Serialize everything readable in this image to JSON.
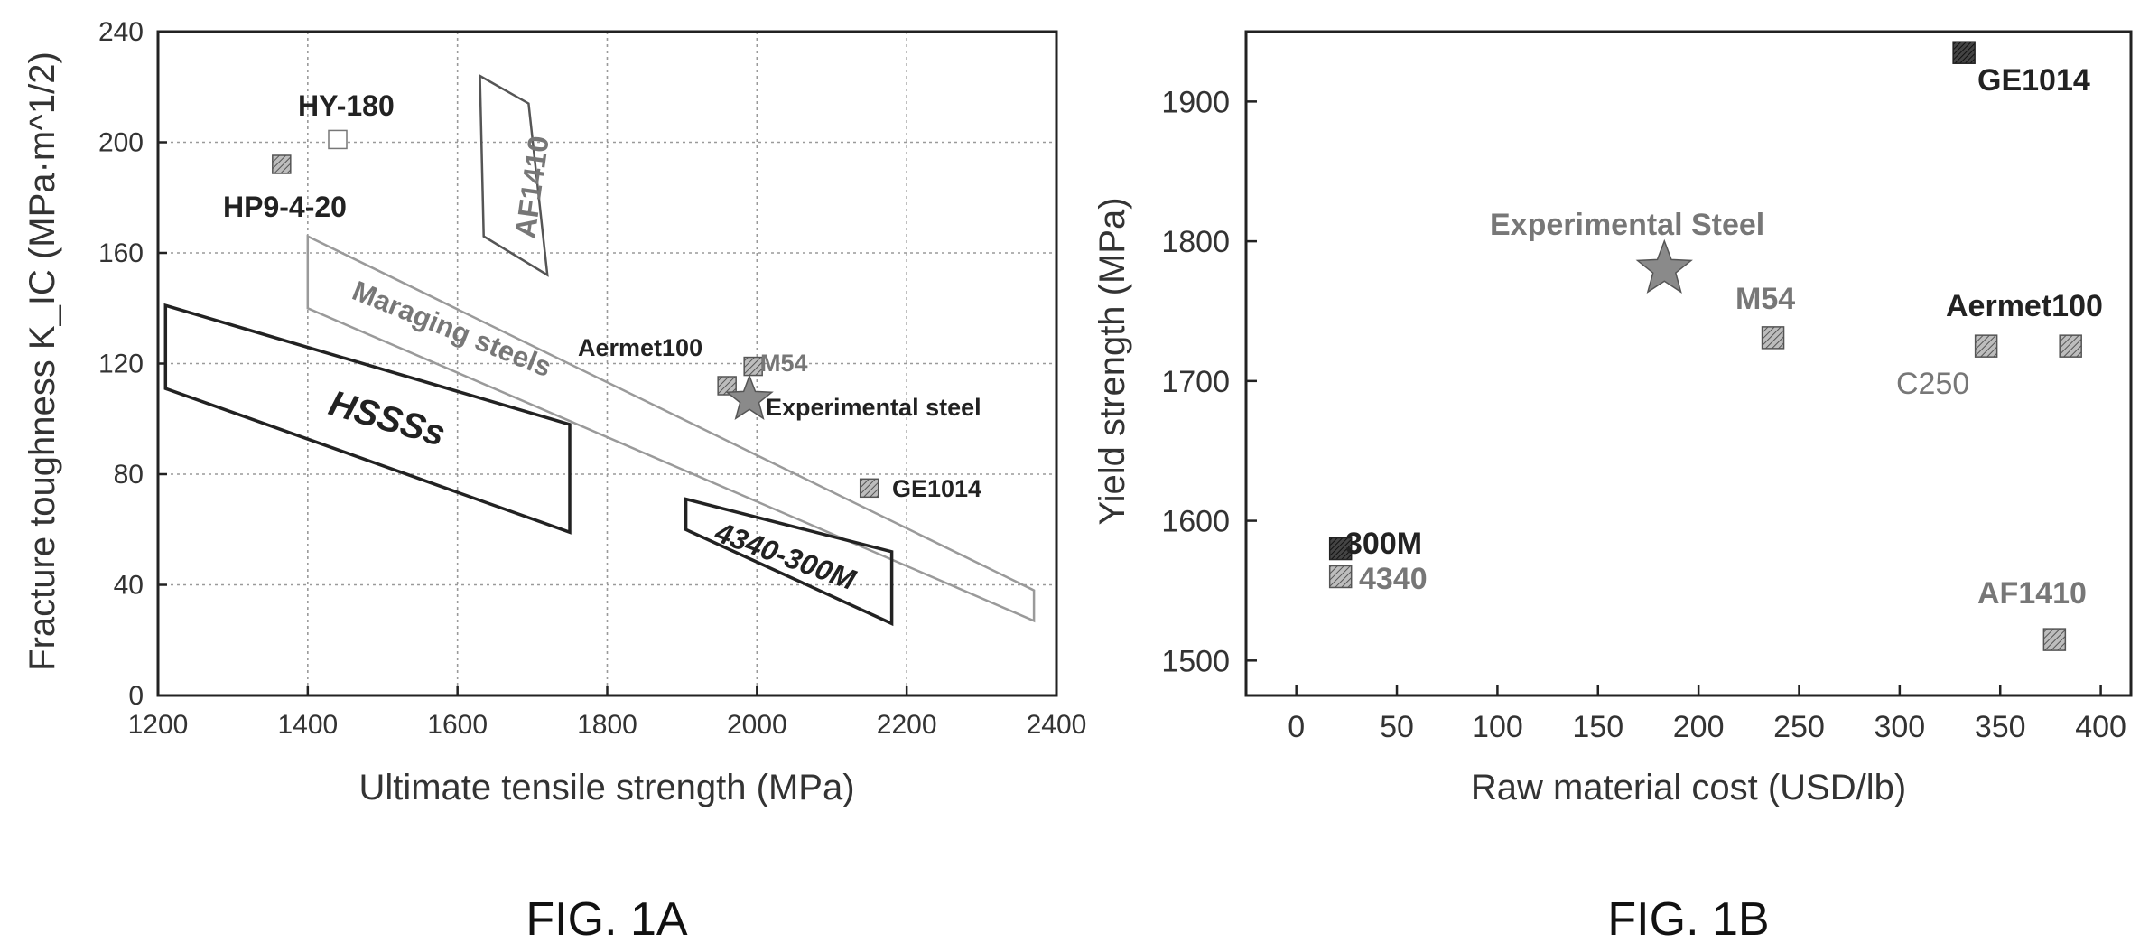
{
  "figures": {
    "left_caption": "FIG. 1A",
    "right_caption": "FIG. 1B"
  },
  "chart_data": [
    {
      "type": "scatter",
      "xlabel": "Ultimate tensile strength (MPa)",
      "ylabel": "Fracture toughness K_IC (MPa·m^1/2)",
      "xlim": [
        1200,
        2400
      ],
      "ylim": [
        0,
        240
      ],
      "xticks": [
        "1200",
        "1400",
        "1600",
        "1800",
        "2000",
        "2200",
        "2400"
      ],
      "yticks": [
        "0",
        "40",
        "80",
        "120",
        "160",
        "200",
        "240"
      ],
      "grid": true,
      "points": [
        {
          "name": "HY-180",
          "x": 1440,
          "y": 201,
          "marker": "open-square"
        },
        {
          "name": "HP9-4-20",
          "x": 1365,
          "y": 192,
          "marker": "hatched-square"
        },
        {
          "name": "Aermet100",
          "x": 1960,
          "y": 112,
          "marker": "hatched-square"
        },
        {
          "name": "M54",
          "x": 1995,
          "y": 119,
          "marker": "hatched-square"
        },
        {
          "name": "Experimental steel",
          "x": 1990,
          "y": 107,
          "marker": "star"
        },
        {
          "name": "GE1014",
          "x": 2150,
          "y": 75,
          "marker": "hatched-square"
        }
      ],
      "regions": [
        {
          "name": "AF1410",
          "corners": [
            [
              1630,
              224
            ],
            [
              1695,
              214
            ],
            [
              1720,
              152
            ],
            [
              1635,
              166
            ]
          ]
        },
        {
          "name": "Maraging steels",
          "corners": [
            [
              1400,
              166
            ],
            [
              2370,
              38
            ],
            [
              2370,
              27
            ],
            [
              1400,
              140
            ]
          ]
        },
        {
          "name": "HSSSs",
          "corners": [
            [
              1210,
              141
            ],
            [
              1750,
              98
            ],
            [
              1750,
              59
            ],
            [
              1210,
              111
            ]
          ]
        },
        {
          "name": "4340-300M",
          "corners": [
            [
              1905,
              71
            ],
            [
              2180,
              52
            ],
            [
              2180,
              26
            ],
            [
              1905,
              60
            ]
          ]
        }
      ],
      "labels": {
        "hy180": "HY-180",
        "hp9": "HP9-4-20",
        "af1410": "AF1410",
        "maraging": "Maraging steels",
        "aermet": "Aermet100",
        "m54": "M54",
        "exp": "Experimental steel",
        "ge1014": "GE1014",
        "hsss": "HSSSs",
        "s4340": "4340-300M"
      }
    },
    {
      "type": "scatter",
      "xlabel": "Raw material cost (USD/lb)",
      "ylabel": "Yield strength (MPa)",
      "xlim": [
        -25,
        415
      ],
      "ylim": [
        1475,
        1950
      ],
      "xticks": [
        "0",
        "50",
        "100",
        "150",
        "200",
        "250",
        "300",
        "350",
        "400"
      ],
      "yticks": [
        "1500",
        "1600",
        "1700",
        "1800",
        "1900"
      ],
      "grid": false,
      "points": [
        {
          "name": "GE1014",
          "x": 332,
          "y": 1935,
          "marker": "dark-square"
        },
        {
          "name": "Experimental Steel",
          "x": 183,
          "y": 1780,
          "marker": "star"
        },
        {
          "name": "M54",
          "x": 237,
          "y": 1731,
          "marker": "hatched-square"
        },
        {
          "name": "C250",
          "x": 343,
          "y": 1725,
          "marker": "hatched-square"
        },
        {
          "name": "Aermet100",
          "x": 385,
          "y": 1725,
          "marker": "hatched-square"
        },
        {
          "name": "300M",
          "x": 22,
          "y": 1580,
          "marker": "dark-square"
        },
        {
          "name": "4340",
          "x": 22,
          "y": 1560,
          "marker": "hatched-square"
        },
        {
          "name": "AF1410",
          "x": 377,
          "y": 1515,
          "marker": "hatched-square"
        }
      ],
      "labels": {
        "ge1014": "GE1014",
        "exp": "Experimental Steel",
        "m54": "M54",
        "aermet": "Aermet100",
        "c250": "C250",
        "s300m": "300M",
        "s4340": "4340",
        "af1410": "AF1410"
      }
    }
  ]
}
